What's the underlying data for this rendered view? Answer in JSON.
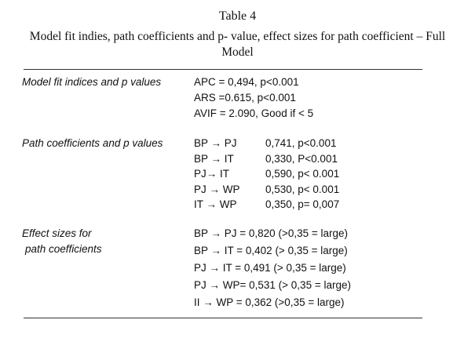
{
  "header": {
    "title": "Table 4",
    "caption": "Model fit indies, path coefficients and p- value, effect sizes for path coefficient – Full Model"
  },
  "sections": [
    {
      "label": [
        "Model fit indices and p values"
      ],
      "rows": [
        [
          "APC = 0,494, p<0.001"
        ],
        [
          "ARS =0.615, p<0.001"
        ],
        [
          "AVIF = 2.090, Good  if < 5"
        ]
      ]
    },
    {
      "label": [
        "Path coefficients and p values"
      ],
      "rows": [
        [
          "BP → PJ",
          "0,741, p<0.001"
        ],
        [
          "BP → IT",
          "0,330, P<0.001"
        ],
        [
          "PJ→ IT",
          "0,590, p< 0.001"
        ],
        [
          "PJ → WP",
          "0,530, p< 0.001"
        ],
        [
          "IT → WP",
          "0,350, p= 0,007"
        ]
      ]
    },
    {
      "label": [
        "Effect sizes for",
        "path coefficients"
      ],
      "rows": [
        [
          "BP → PJ = 0,820 (>0,35 = large)"
        ],
        [
          "BP → IT =  0,402 (> 0,35 =  large)"
        ],
        [
          "PJ → IT  = 0,491 (> 0,35 = large)"
        ],
        [
          "PJ → WP= 0,531  (> 0,35 = large)"
        ],
        [
          "II → WP =  0,362 (>0,35 = large)"
        ]
      ]
    }
  ]
}
